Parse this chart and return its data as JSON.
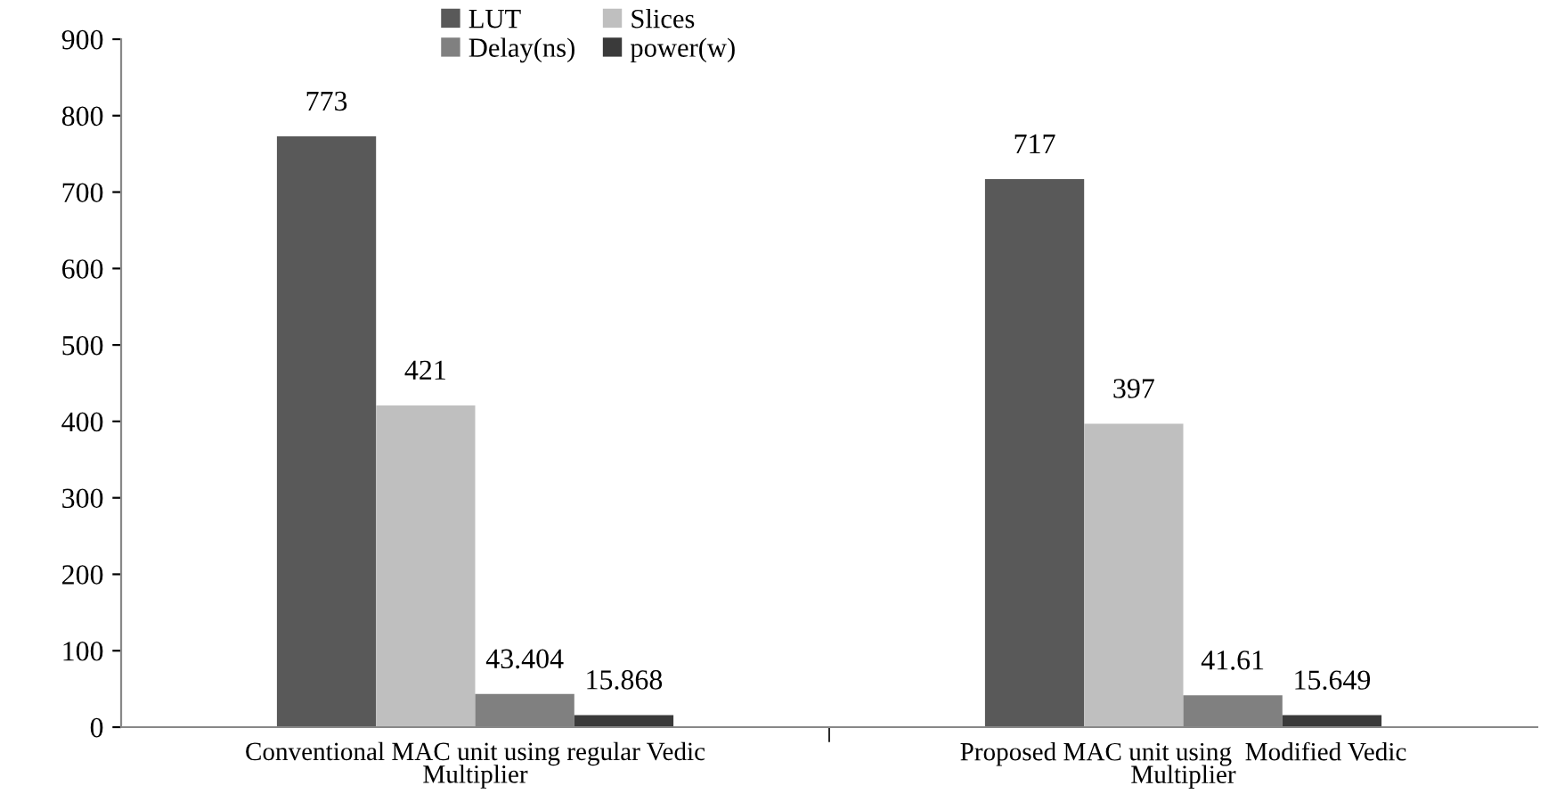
{
  "chart_data": {
    "type": "bar",
    "categories": [
      "Conventional MAC unit using regular Vedic\nMultiplier",
      "Proposed MAC unit using  Modified Vedic\nMultiplier"
    ],
    "series": [
      {
        "name": "LUT",
        "color": "#595959",
        "values": [
          773,
          717
        ]
      },
      {
        "name": "Slices",
        "color": "#bfbfbf",
        "values": [
          421,
          397
        ]
      },
      {
        "name": "Delay(ns)",
        "color": "#808080",
        "values": [
          43.404,
          41.61
        ]
      },
      {
        "name": "power(w)",
        "color": "#3a3a3a",
        "values": [
          15.868,
          15.649
        ]
      }
    ],
    "ylim": [
      0,
      900
    ],
    "yticks": [
      0,
      100,
      200,
      300,
      400,
      500,
      600,
      700,
      800,
      900
    ],
    "data_labels": true,
    "grid": false,
    "legend": "top"
  }
}
